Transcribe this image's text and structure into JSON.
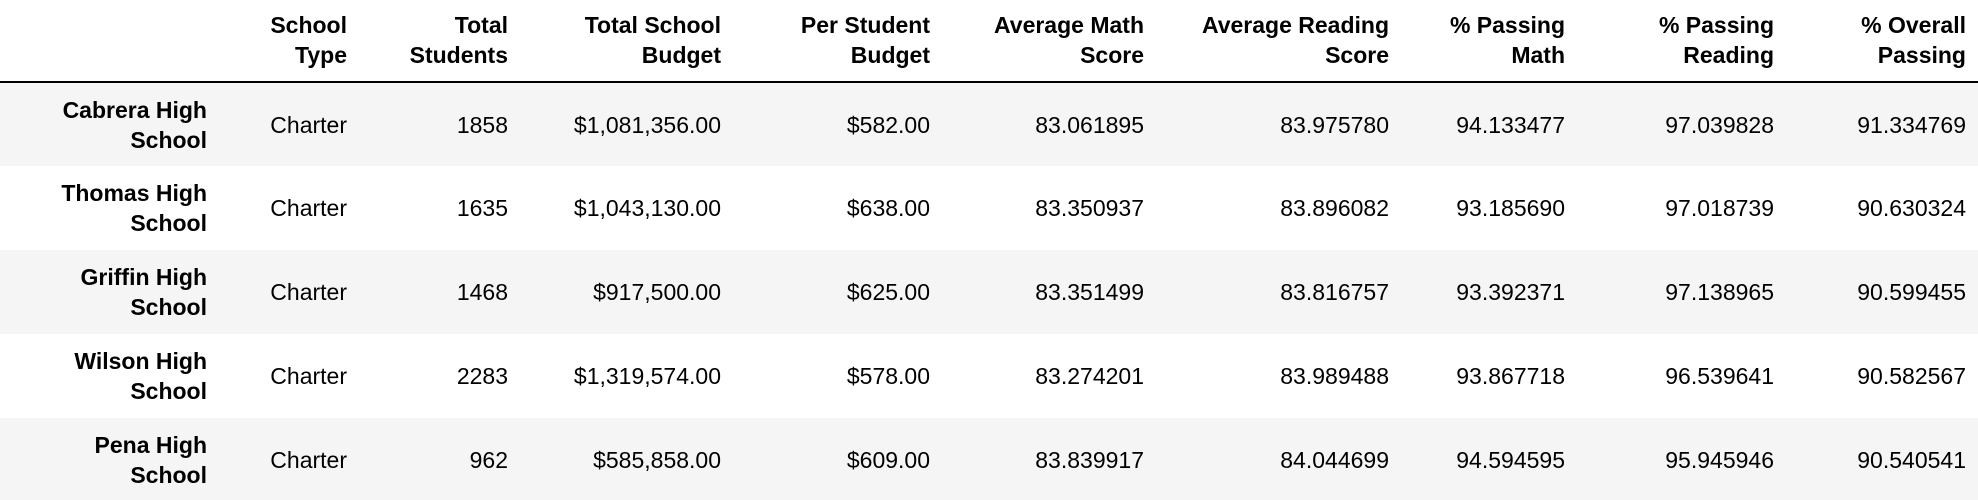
{
  "table": {
    "index_header": "",
    "columns": [
      "School Type",
      "Total Students",
      "Total School Budget",
      "Per Student Budget",
      "Average Math Score",
      "Average Reading Score",
      "% Passing Math",
      "% Passing Reading",
      "% Overall Passing"
    ],
    "rows": [
      {
        "school": "Cabrera High School",
        "cells": [
          "Charter",
          "1858",
          "$1,081,356.00",
          "$582.00",
          "83.061895",
          "83.975780",
          "94.133477",
          "97.039828",
          "91.334769"
        ]
      },
      {
        "school": "Thomas High School",
        "cells": [
          "Charter",
          "1635",
          "$1,043,130.00",
          "$638.00",
          "83.350937",
          "83.896082",
          "93.185690",
          "97.018739",
          "90.630324"
        ]
      },
      {
        "school": "Griffin High School",
        "cells": [
          "Charter",
          "1468",
          "$917,500.00",
          "$625.00",
          "83.351499",
          "83.816757",
          "93.392371",
          "97.138965",
          "90.599455"
        ]
      },
      {
        "school": "Wilson High School",
        "cells": [
          "Charter",
          "2283",
          "$1,319,574.00",
          "$578.00",
          "83.274201",
          "83.989488",
          "93.867718",
          "96.539641",
          "90.582567"
        ]
      },
      {
        "school": "Pena High School",
        "cells": [
          "Charter",
          "962",
          "$585,858.00",
          "$609.00",
          "83.839917",
          "84.044699",
          "94.594595",
          "95.945946",
          "90.540541"
        ]
      }
    ]
  }
}
